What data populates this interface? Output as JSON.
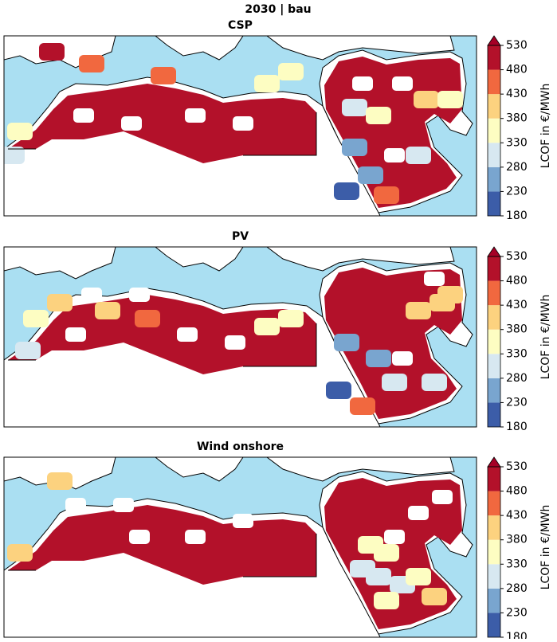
{
  "title": "2030 | bau",
  "colorbar": {
    "label": "LCOF in €/MWh",
    "ticks": [
      180,
      230,
      280,
      330,
      380,
      430,
      480,
      530
    ],
    "colors": [
      "#3c5da8",
      "#79a5cf",
      "#d7e8f1",
      "#fdfdc2",
      "#fcd27f",
      "#f1683f",
      "#b3112a"
    ],
    "over_color": "#a50026"
  },
  "panels": [
    {
      "title": "CSP"
    },
    {
      "title": "PV"
    },
    {
      "title": "Wind onshore"
    }
  ]
}
